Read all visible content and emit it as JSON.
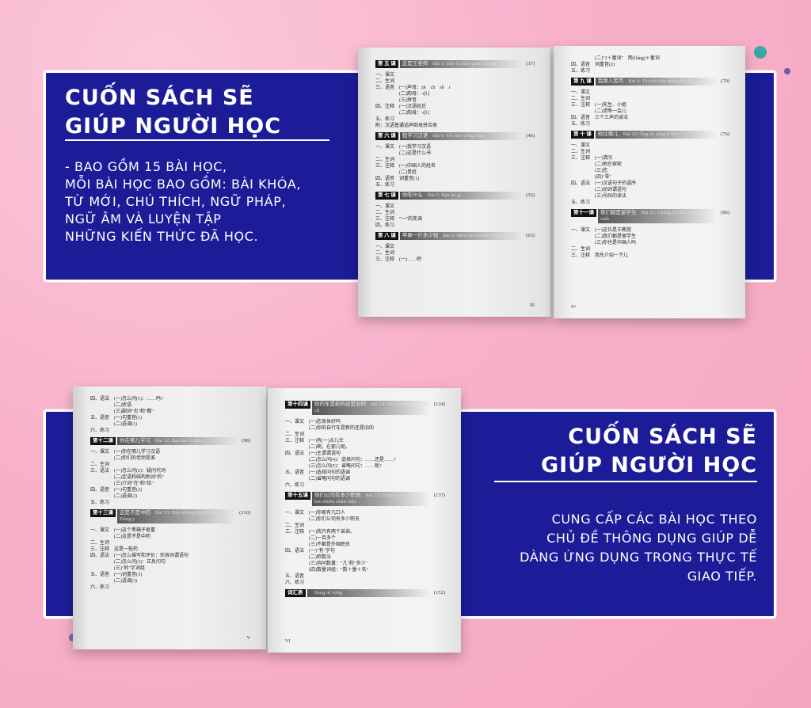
{
  "colors": {
    "panel": "#1c1c98",
    "background": "#f8b1cb",
    "accent_dot": "#3aa6a6"
  },
  "top_panel": {
    "title_line1": "CUỐN SÁCH SẼ",
    "title_line2": "GIÚP NGƯỜI HỌC",
    "body": [
      "- BAO GỒM 15 BÀI HỌC,",
      "MỖI BÀI HỌC BAO GỒM: BÀI KHÓA,",
      "TỪ MỚI, CHÚ THÍCH, NGỮ PHÁP,",
      "NGỮ ÂM VÀ LUYỆN TẬP",
      "NHỮNG KIẾN THỨC ĐÃ HỌC."
    ]
  },
  "bottom_panel": {
    "title_line1": "CUỐN SÁCH SẼ",
    "title_line2": "GIÚP NGƯỜI HỌC",
    "body": [
      "CUNG CẤP CÁC BÀI HỌC THEO",
      "CHỦ ĐỀ THÔNG DỤNG GIÚP DỄ",
      "DÀNG ỨNG DỤNG TRONG THỰC TẾ",
      "GIAO TIẾP."
    ]
  },
  "pages": [
    {
      "folio": "III",
      "items": [
        {
          "h": [
            "第 五 课",
            "这是王老师",
            "Bài 5: Đây là thầy giáo Vương",
            "(37)"
          ]
        },
        {
          "t": "一、课文"
        },
        {
          "t": "二、生词"
        },
        {
          "t": "三、语音　(一)声母：zh　ch　sh　r"
        },
        {
          "t": "　　　　　(二)韵母：-i[ʅ]"
        },
        {
          "t": "　　　　　(三)拼音"
        },
        {
          "t": "四、注释　(一)汉语姓氏"
        },
        {
          "t": "　　　　　(二)韵母：-i[ʅ]"
        },
        {
          "t": "五、练习"
        },
        {
          "t": "附：汉语普通话声韵母拼合表"
        },
        {
          "h": [
            "第 六 课",
            "我学习汉语",
            "Bài 6: Tôi học tiếng Hán",
            "(46)"
          ]
        },
        {
          "t": "一、课文　(一)我学习汉语"
        },
        {
          "t": "　　　　　(二)这是什么书"
        },
        {
          "t": "二、生词"
        },
        {
          "t": "三、注释　(一)中国人的姓名"
        },
        {
          "t": "　　　　　(二)贵姓"
        },
        {
          "t": "四、语音　词重音(1)"
        },
        {
          "t": "五、练习"
        },
        {
          "h": [
            "第 七 课",
            "你吃什么",
            "Bài 7: Bạn ăn gì",
            "(56)"
          ]
        },
        {
          "t": "一、课文"
        },
        {
          "t": "二、生词"
        },
        {
          "t": "三、注释　\"一\"的变调"
        },
        {
          "t": "四、练习"
        },
        {
          "h": [
            "第 八 课",
            "苹果一斤多少钱",
            "Bài 8: Một cân táo bao nhiêu tiền",
            "(63)"
          ]
        },
        {
          "t": "一、课文"
        },
        {
          "t": "二、生词"
        },
        {
          "t": "三、注释　(一)……吧"
        }
      ]
    },
    {
      "folio": "IV",
      "items": [
        {
          "t": "　　　　　(二)\"2＋量词\"　两(liǎng)＋量词"
        },
        {
          "t": "四、语音　词重音(2)"
        },
        {
          "t": "五、练习"
        },
        {
          "h": [
            "第 九 课",
            "我换人民币",
            "Bài 9: Tôi đổi tiền nhân dân tệ",
            "(70)"
          ]
        },
        {
          "t": "一、课文"
        },
        {
          "t": "二、生词"
        },
        {
          "t": "三、注释　(一)先生、小姐"
        },
        {
          "t": "　　　　　(二)请等一会儿"
        },
        {
          "t": "四、语音　三个三声的读法"
        },
        {
          "t": "五、练习"
        },
        {
          "h": [
            "第 十 课",
            "他住哪儿",
            "Bài 10: Ông ấy sống ở đâu",
            "(76)"
          ]
        },
        {
          "t": "一、课文"
        },
        {
          "t": "二、生词"
        },
        {
          "t": "三、注释　(一)请问"
        },
        {
          "t": "　　　　　(二)他在家呢"
        },
        {
          "t": "　　　　　(三)您"
        },
        {
          "t": "　　　　　(四)\"零\""
        },
        {
          "t": "四、语法　(一)汉语句子的语序"
        },
        {
          "t": "　　　　　(二)动词谓语句"
        },
        {
          "t": "　　　　　(三)号码的读法"
        },
        {
          "t": "五、练习"
        },
        {
          "h": [
            "第十一课",
            "我们都是留学生",
            "Bài 11: Chúng tôi đều là lưu học sinh",
            "(86)"
          ]
        },
        {
          "t": "一、课文　(一)这位是王教授"
        },
        {
          "t": "　　　　　(二)我们都是留学生"
        },
        {
          "t": "　　　　　(三)你也是中国人吗"
        },
        {
          "t": "二、生词"
        },
        {
          "t": "三、注释　我先介绍一下儿"
        }
      ]
    },
    {
      "folio": "V",
      "items": [
        {
          "t": "四、语法　(一)怎么问(1)：……吗?"
        },
        {
          "t": "　　　　　(二)状语"
        },
        {
          "t": "　　　　　(三)副词\"也\"和\"都\""
        },
        {
          "t": "五、语音　(一)句重音(1)"
        },
        {
          "t": "　　　　　(二)语调(1)"
        },
        {
          "t": "六、练习"
        },
        {
          "h": [
            "第十二课",
            "你在哪儿学习",
            "Bài 12: Bạn học ở đâu",
            "(98)"
          ]
        },
        {
          "t": "一、课文　(一)你在哪儿学习汉语"
        },
        {
          "t": "　　　　　(二)你们的老师是谁"
        },
        {
          "t": "二、生词"
        },
        {
          "t": "三、语法　(一)怎么问(2)：疑问代词"
        },
        {
          "t": "　　　　　(二)定语和结构助词\"的\""
        },
        {
          "t": "　　　　　(三)介词\"在\"和\"给\""
        },
        {
          "t": "四、语音　(一)句重音(2)"
        },
        {
          "t": "　　　　　(二)语调(2)"
        },
        {
          "t": "五、练习"
        },
        {
          "h": [
            "第十三课",
            "这是不是中药",
            "Bài 13: Đây không phải là thuốc Đông y",
            "(110)"
          ]
        },
        {
          "t": "一、课文　(一)这个黑箱子很重"
        },
        {
          "t": "　　　　　(二)这是不是中药"
        },
        {
          "t": "二、生词"
        },
        {
          "t": "三、注释　这是一些药"
        },
        {
          "t": "四、语法　(一)怎么描写和评价：形容词谓语句"
        },
        {
          "t": "　　　　　(二)怎么问(3)：正反问句"
        },
        {
          "t": "　　　　　(三)\"的\"字词组"
        },
        {
          "t": "五、语音　(一)词重音(3)"
        },
        {
          "t": "　　　　　(二)语调(3)"
        },
        {
          "t": "六、练习"
        }
      ]
    },
    {
      "folio": "VI",
      "items": [
        {
          "h": [
            "第十四课",
            "你的车是新的还是旧的",
            "Bài 14: Xe của bạn mới hay cũ",
            "(124)"
          ]
        },
        {
          "t": "一、课文　(一)您身体好吗"
        },
        {
          "t": "　　　　　(二)你的自行车是新的还是旧的"
        },
        {
          "t": "二、生词"
        },
        {
          "t": "三、注释　(一)有(一)点儿忙"
        },
        {
          "t": "　　　　　(二)啊，在那儿呢。"
        },
        {
          "t": "四、语法　(一)主谓谓语句"
        },
        {
          "t": "　　　　　(二)怎么问(4)：选择问句：……还是……?"
        },
        {
          "t": "　　　　　(三)怎么问(5)：省略问句：……呢?"
        },
        {
          "t": "五、语音　(一)选择问句的语调"
        },
        {
          "t": "　　　　　(二)省略问句的语调"
        },
        {
          "t": "六、练习"
        },
        {
          "h": [
            "第十五课",
            "你们公司有多少职员",
            "Bài 15: Công ty của ông có bao nhiêu nhân viên",
            "(137)"
          ]
        },
        {
          "t": "一、课文　(一)你家有几口人"
        },
        {
          "t": "　　　　　(二)你们公司有多少职员"
        },
        {
          "t": "二、生词"
        },
        {
          "t": "三、注释　(一)我只有两个弟弟。"
        },
        {
          "t": "　　　　　(二)一百多个"
        },
        {
          "t": "　　　　　(三)不都是外国职员"
        },
        {
          "t": "四、语法　(一)\"有\"字句"
        },
        {
          "t": "　　　　　(二)称数法"
        },
        {
          "t": "　　　　　(三)询问数量：\"几\"和\"多少\""
        },
        {
          "t": "　　　　　(四)数量词组：\"数＋量＋名\""
        },
        {
          "t": "五、语音"
        },
        {
          "t": "六、练习"
        },
        {
          "h": [
            "词汇表",
            "",
            "Bảng từ vựng",
            "(152)"
          ]
        }
      ]
    }
  ]
}
